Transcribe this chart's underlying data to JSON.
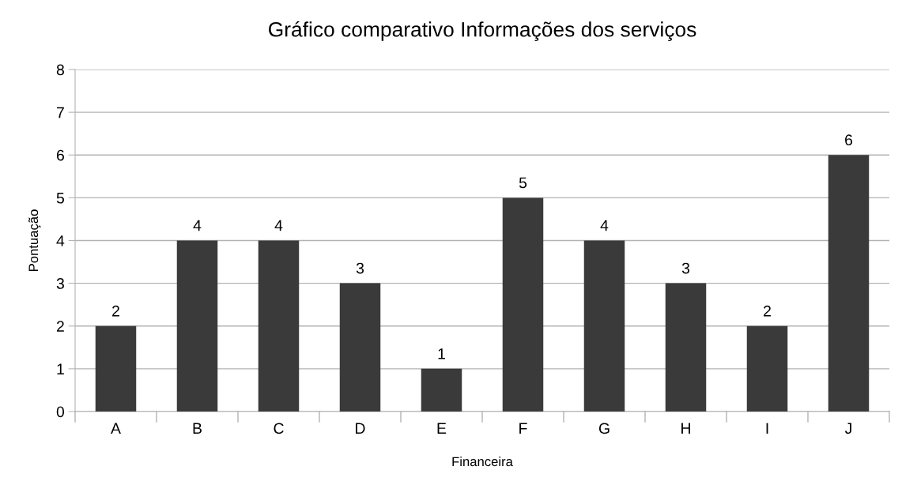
{
  "chart_data": {
    "type": "bar",
    "title": "Gráfico comparativo Informações dos serviços",
    "xlabel": "Financeira",
    "ylabel": "Pontuação",
    "categories": [
      "A",
      "B",
      "C",
      "D",
      "E",
      "F",
      "G",
      "H",
      "I",
      "J"
    ],
    "values": [
      2,
      4,
      4,
      3,
      1,
      5,
      4,
      3,
      2,
      6
    ],
    "color": "#3a3a3a",
    "ylim": [
      0,
      8
    ],
    "yticks": [
      0,
      1,
      2,
      3,
      4,
      5,
      6,
      7,
      8
    ],
    "grid": "y",
    "data_labels": true
  }
}
